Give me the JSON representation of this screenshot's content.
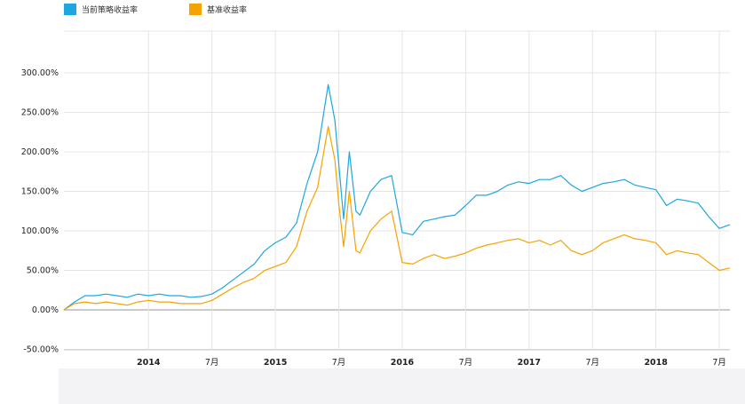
{
  "chart_data": {
    "type": "line",
    "title": "",
    "xlabel": "",
    "ylabel": "",
    "ylim": [
      -50,
      300
    ],
    "y_ticks": [
      "-50.00%",
      "0.00%",
      "50.00%",
      "100.00%",
      "150.00%",
      "200.00%",
      "250.00%",
      "300.00%"
    ],
    "y_tick_values": [
      -50,
      0,
      50,
      100,
      150,
      200,
      250,
      300
    ],
    "x_range": [
      "2013-05",
      "2018-08"
    ],
    "x_ticks": [
      {
        "label": "2014",
        "date": "2014-01",
        "bold": true
      },
      {
        "label": "7月",
        "date": "2014-07",
        "bold": false
      },
      {
        "label": "2015",
        "date": "2015-01",
        "bold": true
      },
      {
        "label": "7月",
        "date": "2015-07",
        "bold": false
      },
      {
        "label": "2016",
        "date": "2016-01",
        "bold": true
      },
      {
        "label": "7月",
        "date": "2016-07",
        "bold": false
      },
      {
        "label": "2017",
        "date": "2017-01",
        "bold": true
      },
      {
        "label": "7月",
        "date": "2017-07",
        "bold": false
      },
      {
        "label": "2018",
        "date": "2018-01",
        "bold": true
      },
      {
        "label": "7月",
        "date": "2018-07",
        "bold": false
      }
    ],
    "grid": true,
    "legend_position": "top-left",
    "series": [
      {
        "name": "当前策略收益率",
        "color": "#1ea6e0",
        "points": [
          [
            "2013-05",
            0
          ],
          [
            "2013-06",
            10
          ],
          [
            "2013-07",
            18
          ],
          [
            "2013-08",
            18
          ],
          [
            "2013-09",
            20
          ],
          [
            "2013-10",
            18
          ],
          [
            "2013-11",
            16
          ],
          [
            "2013-12",
            20
          ],
          [
            "2014-01",
            18
          ],
          [
            "2014-02",
            20
          ],
          [
            "2014-03",
            18
          ],
          [
            "2014-04",
            18
          ],
          [
            "2014-05",
            16
          ],
          [
            "2014-06",
            17
          ],
          [
            "2014-07",
            20
          ],
          [
            "2014-08",
            28
          ],
          [
            "2014-09",
            38
          ],
          [
            "2014-10",
            48
          ],
          [
            "2014-11",
            58
          ],
          [
            "2014-12",
            75
          ],
          [
            "2015-01",
            85
          ],
          [
            "2015-02",
            92
          ],
          [
            "2015-03",
            110
          ],
          [
            "2015-04",
            160
          ],
          [
            "2015-05",
            200
          ],
          [
            "2015-06",
            285
          ],
          [
            "2015-06-20",
            240
          ],
          [
            "2015-07",
            185
          ],
          [
            "2015-07-15",
            115
          ],
          [
            "2015-08",
            200
          ],
          [
            "2015-08-20",
            125
          ],
          [
            "2015-09",
            120
          ],
          [
            "2015-10",
            150
          ],
          [
            "2015-11",
            165
          ],
          [
            "2015-12",
            170
          ],
          [
            "2016-01",
            98
          ],
          [
            "2016-02",
            95
          ],
          [
            "2016-03",
            112
          ],
          [
            "2016-04",
            115
          ],
          [
            "2016-05",
            118
          ],
          [
            "2016-06",
            120
          ],
          [
            "2016-07",
            132
          ],
          [
            "2016-08",
            145
          ],
          [
            "2016-09",
            145
          ],
          [
            "2016-10",
            150
          ],
          [
            "2016-11",
            158
          ],
          [
            "2016-12",
            162
          ],
          [
            "2017-01",
            160
          ],
          [
            "2017-02",
            165
          ],
          [
            "2017-03",
            165
          ],
          [
            "2017-04",
            170
          ],
          [
            "2017-05",
            158
          ],
          [
            "2017-06",
            150
          ],
          [
            "2017-07",
            155
          ],
          [
            "2017-08",
            160
          ],
          [
            "2017-09",
            162
          ],
          [
            "2017-10",
            165
          ],
          [
            "2017-11",
            158
          ],
          [
            "2017-12",
            155
          ],
          [
            "2018-01",
            152
          ],
          [
            "2018-02",
            132
          ],
          [
            "2018-03",
            140
          ],
          [
            "2018-04",
            138
          ],
          [
            "2018-05",
            135
          ],
          [
            "2018-06",
            118
          ],
          [
            "2018-07",
            103
          ],
          [
            "2018-08",
            108
          ]
        ]
      },
      {
        "name": "基准收益率",
        "color": "#f5a300",
        "points": [
          [
            "2013-05",
            0
          ],
          [
            "2013-06",
            8
          ],
          [
            "2013-07",
            10
          ],
          [
            "2013-08",
            8
          ],
          [
            "2013-09",
            10
          ],
          [
            "2013-10",
            8
          ],
          [
            "2013-11",
            6
          ],
          [
            "2013-12",
            10
          ],
          [
            "2014-01",
            12
          ],
          [
            "2014-02",
            10
          ],
          [
            "2014-03",
            10
          ],
          [
            "2014-04",
            8
          ],
          [
            "2014-05",
            8
          ],
          [
            "2014-06",
            8
          ],
          [
            "2014-07",
            12
          ],
          [
            "2014-08",
            20
          ],
          [
            "2014-09",
            28
          ],
          [
            "2014-10",
            35
          ],
          [
            "2014-11",
            40
          ],
          [
            "2014-12",
            50
          ],
          [
            "2015-01",
            55
          ],
          [
            "2015-02",
            60
          ],
          [
            "2015-03",
            80
          ],
          [
            "2015-04",
            125
          ],
          [
            "2015-05",
            155
          ],
          [
            "2015-06",
            232
          ],
          [
            "2015-06-20",
            190
          ],
          [
            "2015-07",
            135
          ],
          [
            "2015-07-15",
            80
          ],
          [
            "2015-08",
            150
          ],
          [
            "2015-08-20",
            75
          ],
          [
            "2015-09",
            72
          ],
          [
            "2015-10",
            100
          ],
          [
            "2015-11",
            115
          ],
          [
            "2015-12",
            125
          ],
          [
            "2016-01",
            60
          ],
          [
            "2016-02",
            58
          ],
          [
            "2016-03",
            65
          ],
          [
            "2016-04",
            70
          ],
          [
            "2016-05",
            65
          ],
          [
            "2016-06",
            68
          ],
          [
            "2016-07",
            72
          ],
          [
            "2016-08",
            78
          ],
          [
            "2016-09",
            82
          ],
          [
            "2016-10",
            85
          ],
          [
            "2016-11",
            88
          ],
          [
            "2016-12",
            90
          ],
          [
            "2017-01",
            85
          ],
          [
            "2017-02",
            88
          ],
          [
            "2017-03",
            82
          ],
          [
            "2017-04",
            88
          ],
          [
            "2017-05",
            75
          ],
          [
            "2017-06",
            70
          ],
          [
            "2017-07",
            75
          ],
          [
            "2017-08",
            85
          ],
          [
            "2017-09",
            90
          ],
          [
            "2017-10",
            95
          ],
          [
            "2017-11",
            90
          ],
          [
            "2017-12",
            88
          ],
          [
            "2018-01",
            85
          ],
          [
            "2018-02",
            70
          ],
          [
            "2018-03",
            75
          ],
          [
            "2018-04",
            72
          ],
          [
            "2018-05",
            70
          ],
          [
            "2018-06",
            60
          ],
          [
            "2018-07",
            50
          ],
          [
            "2018-08",
            53
          ]
        ]
      }
    ]
  }
}
